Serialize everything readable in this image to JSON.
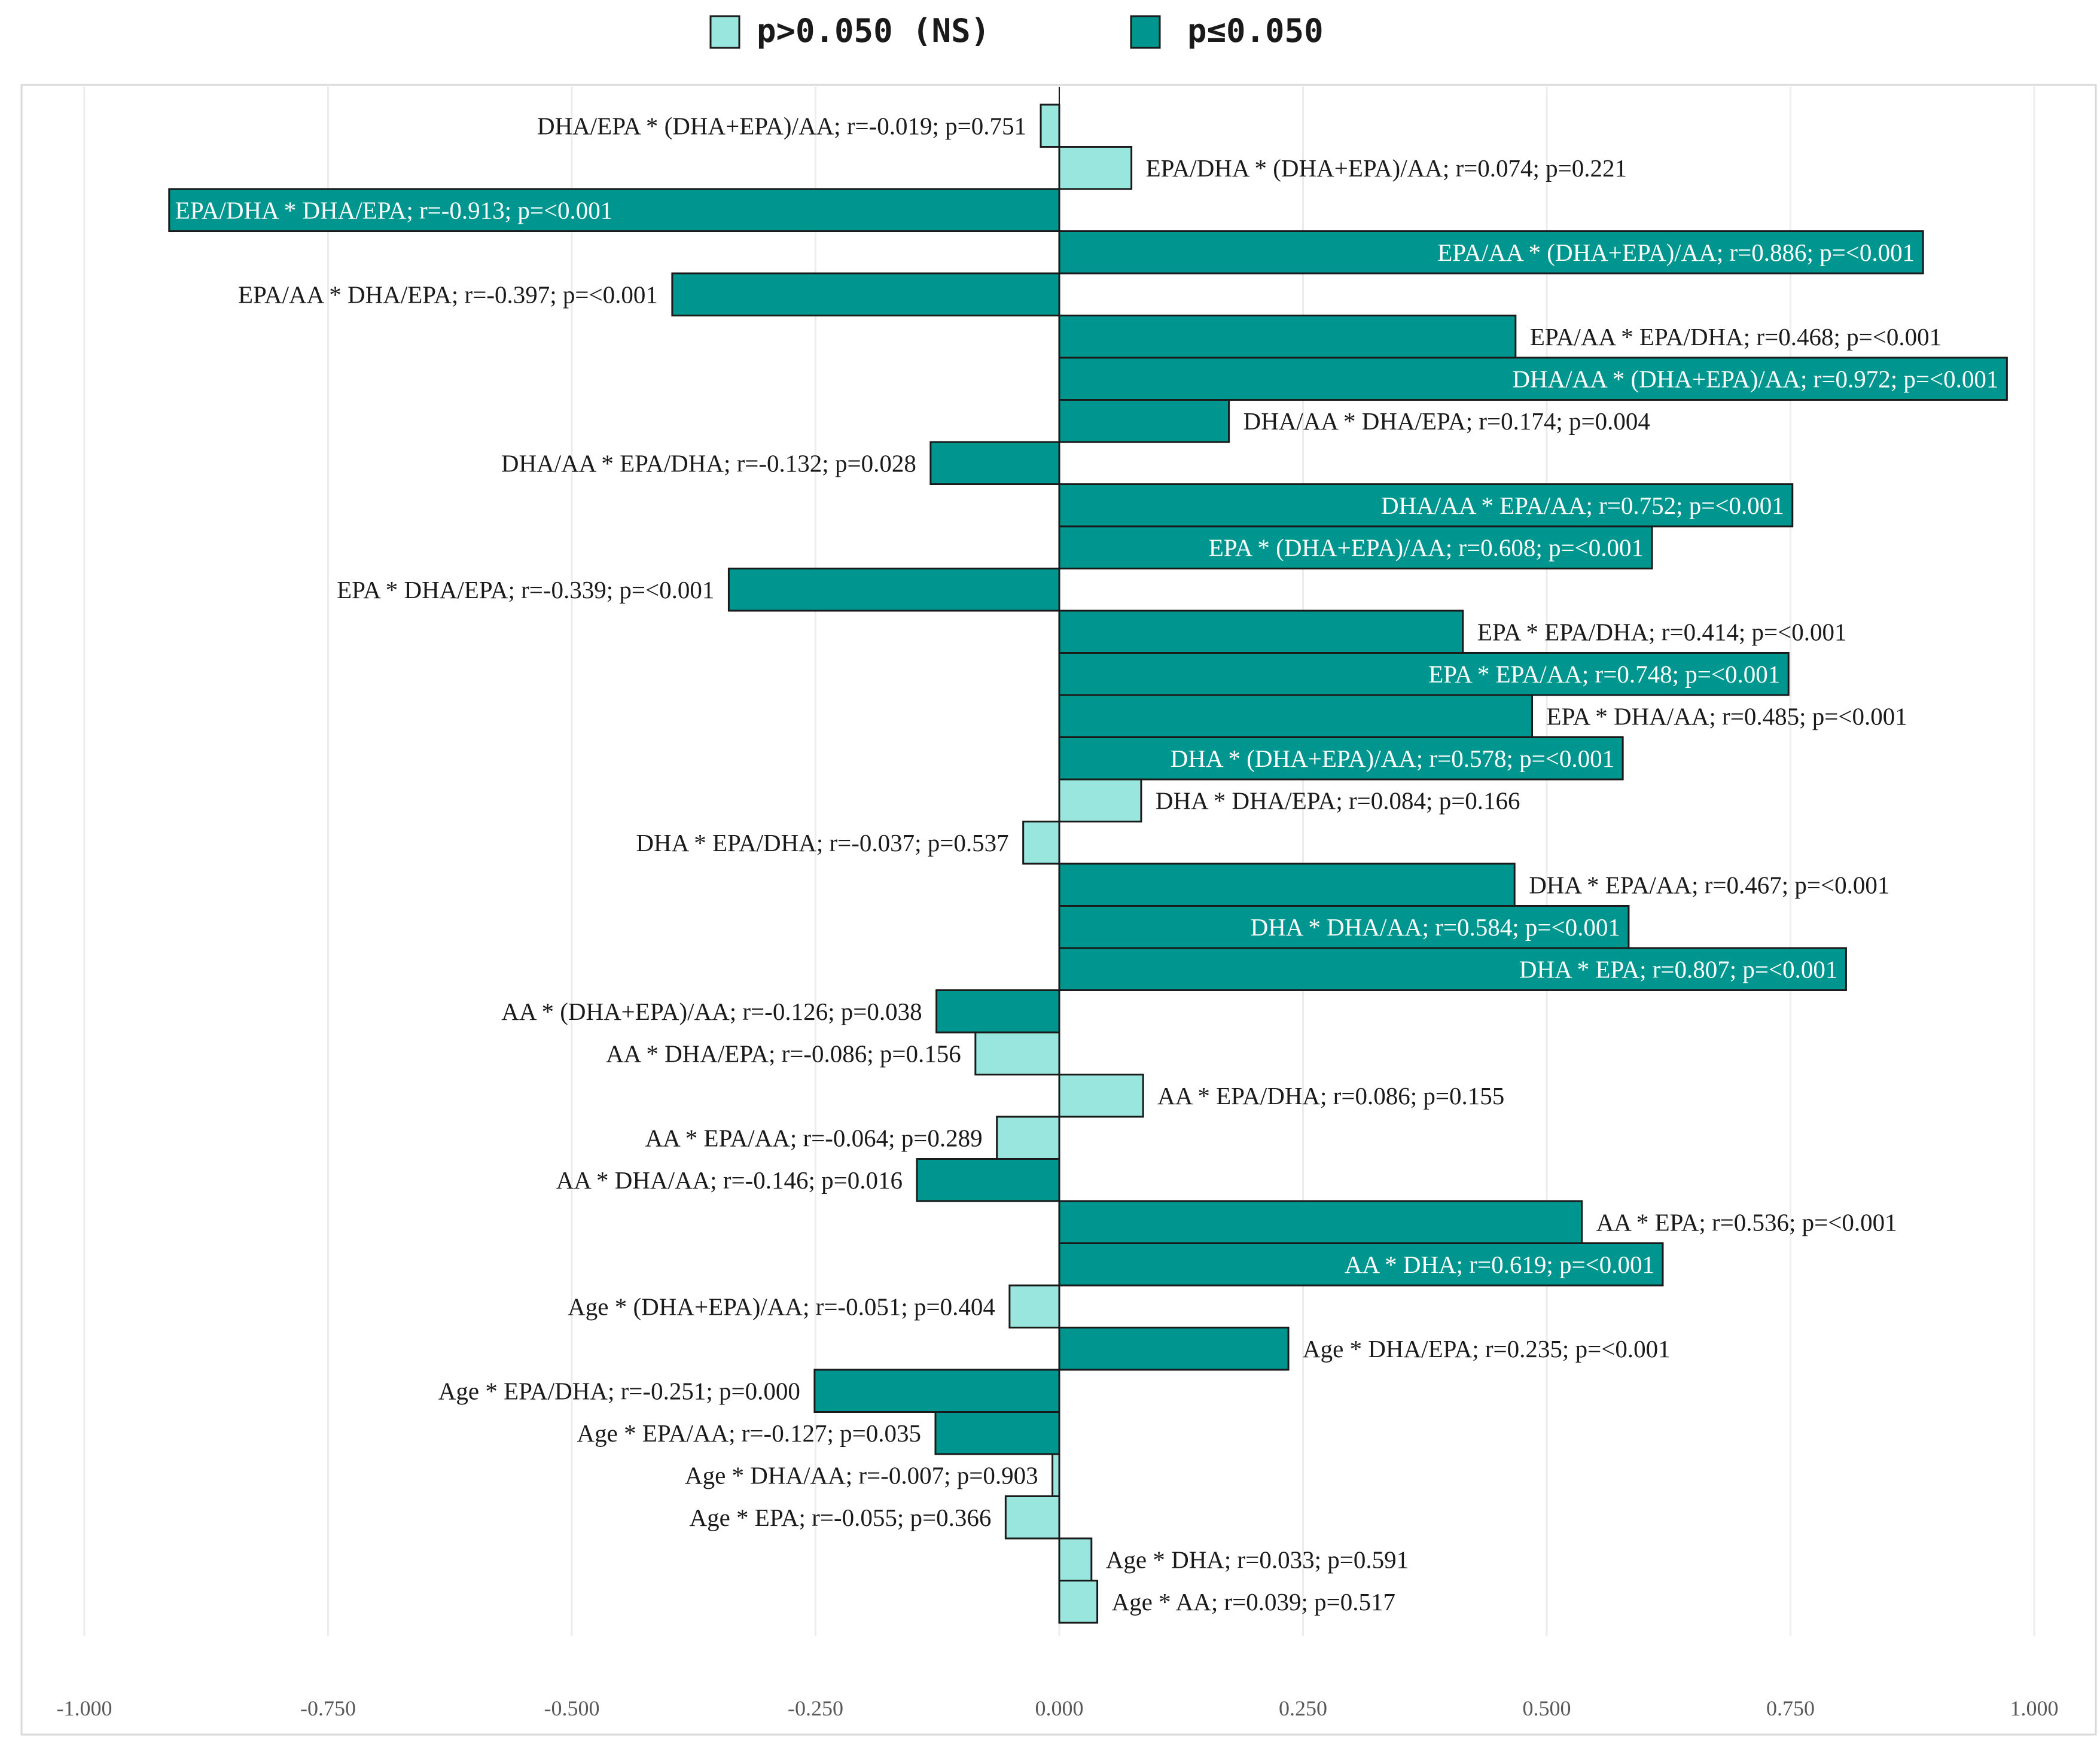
{
  "chart_data": {
    "type": "bar",
    "orientation": "horizontal",
    "title": "",
    "xlabel": "",
    "ylabel": "",
    "xlim": [
      -1.0,
      1.0
    ],
    "x_ticks": [
      -1.0,
      -0.75,
      -0.5,
      -0.25,
      0.0,
      0.25,
      0.5,
      0.75,
      1.0
    ],
    "x_tick_labels": [
      "-1.000",
      "-0.750",
      "-0.500",
      "-0.250",
      "0.000",
      "0.250",
      "0.500",
      "0.750",
      "1.000"
    ],
    "grid": "vertical",
    "legend_position": "top-center",
    "legend": [
      {
        "key": "ns",
        "label": "p>0.050 (NS)",
        "color": "#99E6DF"
      },
      {
        "key": "sig",
        "label": "p≤0.050",
        "color": "#009690"
      }
    ],
    "series": [
      {
        "label": "DHA/EPA * (DHA+EPA)/AA; r=-0.019; p=0.751",
        "value": -0.019,
        "group": "ns"
      },
      {
        "label": "EPA/DHA * (DHA+EPA)/AA; r=0.074; p=0.221",
        "value": 0.074,
        "group": "ns"
      },
      {
        "label": "EPA/DHA * DHA/EPA; r=-0.913; p=<0.001",
        "value": -0.913,
        "group": "sig"
      },
      {
        "label": "EPA/AA * (DHA+EPA)/AA; r=0.886; p=<0.001",
        "value": 0.886,
        "group": "sig"
      },
      {
        "label": "EPA/AA * DHA/EPA; r=-0.397; p=<0.001",
        "value": -0.397,
        "group": "sig"
      },
      {
        "label": "EPA/AA * EPA/DHA; r=0.468; p=<0.001",
        "value": 0.468,
        "group": "sig"
      },
      {
        "label": "DHA/AA * (DHA+EPA)/AA; r=0.972; p=<0.001",
        "value": 0.972,
        "group": "sig"
      },
      {
        "label": "DHA/AA * DHA/EPA; r=0.174; p=0.004",
        "value": 0.174,
        "group": "sig"
      },
      {
        "label": "DHA/AA * EPA/DHA; r=-0.132; p=0.028",
        "value": -0.132,
        "group": "sig"
      },
      {
        "label": "DHA/AA * EPA/AA; r=0.752; p=<0.001",
        "value": 0.752,
        "group": "sig"
      },
      {
        "label": "EPA * (DHA+EPA)/AA; r=0.608; p=<0.001",
        "value": 0.608,
        "group": "sig"
      },
      {
        "label": "EPA * DHA/EPA; r=-0.339; p=<0.001",
        "value": -0.339,
        "group": "sig"
      },
      {
        "label": "EPA * EPA/DHA; r=0.414; p=<0.001",
        "value": 0.414,
        "group": "sig"
      },
      {
        "label": "EPA * EPA/AA; r=0.748; p=<0.001",
        "value": 0.748,
        "group": "sig"
      },
      {
        "label": "EPA * DHA/AA; r=0.485; p=<0.001",
        "value": 0.485,
        "group": "sig"
      },
      {
        "label": "DHA * (DHA+EPA)/AA; r=0.578; p=<0.001",
        "value": 0.578,
        "group": "sig"
      },
      {
        "label": "DHA * DHA/EPA; r=0.084; p=0.166",
        "value": 0.084,
        "group": "ns"
      },
      {
        "label": "DHA * EPA/DHA; r=-0.037; p=0.537",
        "value": -0.037,
        "group": "ns"
      },
      {
        "label": "DHA * EPA/AA; r=0.467; p=<0.001",
        "value": 0.467,
        "group": "sig"
      },
      {
        "label": "DHA * DHA/AA; r=0.584; p=<0.001",
        "value": 0.584,
        "group": "sig"
      },
      {
        "label": "DHA * EPA; r=0.807; p=<0.001",
        "value": 0.807,
        "group": "sig"
      },
      {
        "label": "AA * (DHA+EPA)/AA; r=-0.126; p=0.038",
        "value": -0.126,
        "group": "sig"
      },
      {
        "label": "AA * DHA/EPA; r=-0.086; p=0.156",
        "value": -0.086,
        "group": "ns"
      },
      {
        "label": "AA * EPA/DHA; r=0.086; p=0.155",
        "value": 0.086,
        "group": "ns"
      },
      {
        "label": "AA * EPA/AA; r=-0.064; p=0.289",
        "value": -0.064,
        "group": "ns"
      },
      {
        "label": "AA * DHA/AA; r=-0.146; p=0.016",
        "value": -0.146,
        "group": "sig"
      },
      {
        "label": "AA * EPA; r=0.536; p=<0.001",
        "value": 0.536,
        "group": "sig"
      },
      {
        "label": "AA * DHA; r=0.619; p=<0.001",
        "value": 0.619,
        "group": "sig"
      },
      {
        "label": "Age * (DHA+EPA)/AA; r=-0.051; p=0.404",
        "value": -0.051,
        "group": "ns"
      },
      {
        "label": "Age * DHA/EPA; r=0.235; p=<0.001",
        "value": 0.235,
        "group": "sig"
      },
      {
        "label": "Age * EPA/DHA; r=-0.251; p=0.000",
        "value": -0.251,
        "group": "sig"
      },
      {
        "label": "Age * EPA/AA; r=-0.127; p=0.035",
        "value": -0.127,
        "group": "sig"
      },
      {
        "label": "Age * DHA/AA; r=-0.007; p=0.903",
        "value": -0.007,
        "group": "ns"
      },
      {
        "label": "Age * EPA; r=-0.055; p=0.366",
        "value": -0.055,
        "group": "ns"
      },
      {
        "label": "Age * DHA; r=0.033; p=0.591",
        "value": 0.033,
        "group": "ns"
      },
      {
        "label": "Age * AA; r=0.039; p=0.517",
        "value": 0.039,
        "group": "ns"
      }
    ]
  }
}
